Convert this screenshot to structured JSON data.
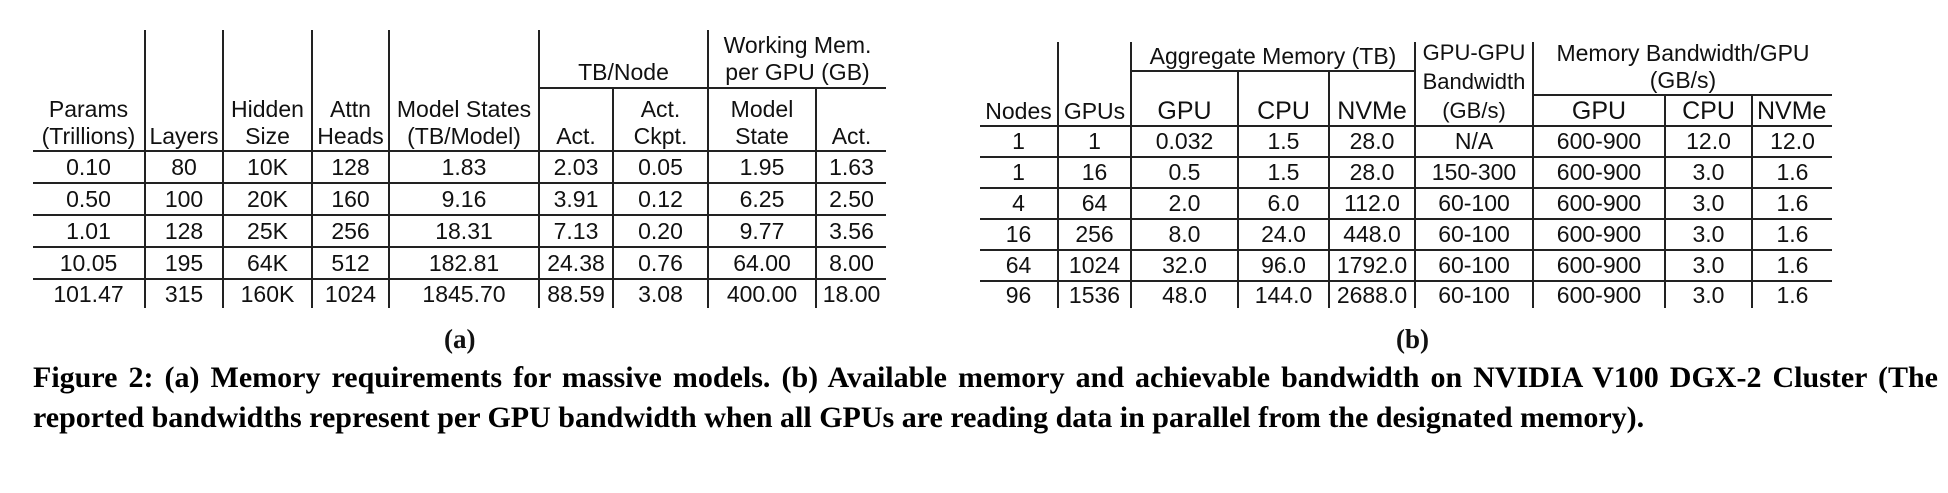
{
  "figure": {
    "subfig_a_label": "(a)",
    "subfig_b_label": "(b)",
    "caption": "Figure 2: (a) Memory requirements for massive models. (b) Available memory and achievable bandwidth on NVIDIA V100 DGX-2 Cluster (The reported bandwidths represent per GPU bandwidth when all GPUs are reading data in parallel from the designated memory)."
  },
  "table_a": {
    "group_headers": {
      "tb_node": "TB/Node",
      "working_mem": [
        "Working Mem.",
        "per GPU (GB)"
      ]
    },
    "headers": {
      "params": [
        "Params",
        "(Trillions)"
      ],
      "layers": [
        "Layers"
      ],
      "hidden": [
        "Hidden",
        "Size"
      ],
      "attn": [
        "Attn",
        "Heads"
      ],
      "model_states": [
        "Model States",
        "(TB/Model)"
      ],
      "act": [
        "Act."
      ],
      "act_ckpt": [
        "Act.",
        "Ckpt."
      ],
      "model_state": [
        "Model",
        "State"
      ],
      "wm_act": [
        "Act."
      ]
    },
    "rows": [
      [
        "0.10",
        "80",
        "10K",
        "128",
        "1.83",
        "2.03",
        "0.05",
        "1.95",
        "1.63"
      ],
      [
        "0.50",
        "100",
        "20K",
        "160",
        "9.16",
        "3.91",
        "0.12",
        "6.25",
        "2.50"
      ],
      [
        "1.01",
        "128",
        "25K",
        "256",
        "18.31",
        "7.13",
        "0.20",
        "9.77",
        "3.56"
      ],
      [
        "10.05",
        "195",
        "64K",
        "512",
        "182.81",
        "24.38",
        "0.76",
        "64.00",
        "8.00"
      ],
      [
        "101.47",
        "315",
        "160K",
        "1024",
        "1845.70",
        "88.59",
        "3.08",
        "400.00",
        "18.00"
      ]
    ]
  },
  "table_b": {
    "group_headers": {
      "aggregate_memory": "Aggregate Memory (TB)",
      "mem_bandwidth": [
        "Memory Bandwidth/GPU",
        "(GB/s)"
      ]
    },
    "headers": {
      "nodes": [
        "Nodes"
      ],
      "gpus": [
        "GPUs"
      ],
      "agg_gpu": [
        "GPU"
      ],
      "agg_cpu": [
        "CPU"
      ],
      "agg_nvme": [
        "NVMe"
      ],
      "gpu_gpu_bw": [
        "GPU-GPU",
        "Bandwidth",
        "(GB/s)"
      ],
      "bw_gpu": [
        "GPU"
      ],
      "bw_cpu": [
        "CPU"
      ],
      "bw_nvme": [
        "NVMe"
      ]
    },
    "rows": [
      [
        "1",
        "1",
        "0.032",
        "1.5",
        "28.0",
        "N/A",
        "600-900",
        "12.0",
        "12.0"
      ],
      [
        "1",
        "16",
        "0.5",
        "1.5",
        "28.0",
        "150-300",
        "600-900",
        "3.0",
        "1.6"
      ],
      [
        "4",
        "64",
        "2.0",
        "6.0",
        "112.0",
        "60-100",
        "600-900",
        "3.0",
        "1.6"
      ],
      [
        "16",
        "256",
        "8.0",
        "24.0",
        "448.0",
        "60-100",
        "600-900",
        "3.0",
        "1.6"
      ],
      [
        "64",
        "1024",
        "32.0",
        "96.0",
        "1792.0",
        "60-100",
        "600-900",
        "3.0",
        "1.6"
      ],
      [
        "96",
        "1536",
        "48.0",
        "144.0",
        "2688.0",
        "60-100",
        "600-900",
        "3.0",
        "1.6"
      ]
    ]
  }
}
